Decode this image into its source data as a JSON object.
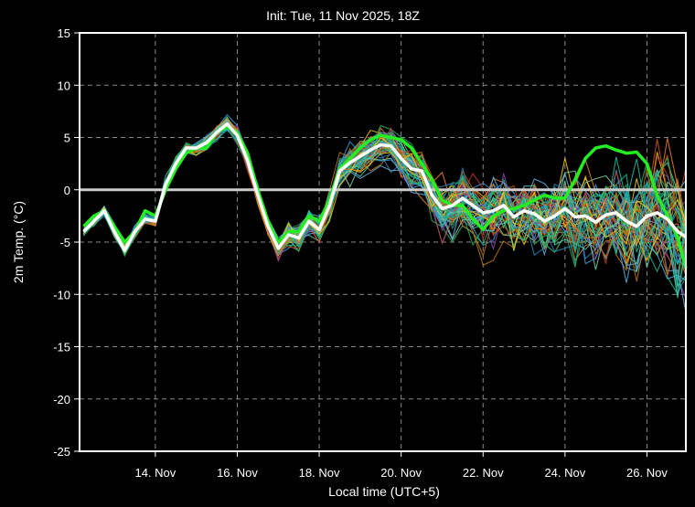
{
  "chart_data": {
    "type": "line",
    "title": "Init: Tue, 11 Nov 2025, 18Z",
    "xlabel": "Local time (UTC+5)",
    "ylabel": "2m Temp. (°C)",
    "ylim": [
      -25,
      15
    ],
    "yticks": [
      15,
      10,
      5,
      0,
      -5,
      -10,
      -15,
      -20,
      -25
    ],
    "xlim_days": [
      12.15,
      26.95
    ],
    "xticks": [
      {
        "day": 14,
        "label": "14. Nov"
      },
      {
        "day": 16,
        "label": "16. Nov"
      },
      {
        "day": 18,
        "label": "18. Nov"
      },
      {
        "day": 20,
        "label": "20. Nov"
      },
      {
        "day": 22,
        "label": "22. Nov"
      },
      {
        "day": 24,
        "label": "24. Nov"
      },
      {
        "day": 26,
        "label": "26. Nov"
      }
    ],
    "grid": true,
    "zero_line_color": "#cccccc",
    "ensemble_colors": [
      "#e67e22",
      "#3498db",
      "#27ae60",
      "#1abc9c",
      "#f1c40f",
      "#5dade2",
      "#d35400",
      "#16a085",
      "#8e44ad",
      "#2ecc71",
      "#c0392b",
      "#2980b9",
      "#7dcea0",
      "#b9770e",
      "#48c9b0"
    ],
    "ensemble_count": 50,
    "series": [
      {
        "role": "mean",
        "color": "#ffffff",
        "x": [
          12.25,
          12.5,
          12.75,
          13.0,
          13.25,
          13.5,
          13.75,
          14.0,
          14.25,
          14.5,
          14.75,
          15.0,
          15.25,
          15.5,
          15.75,
          16.0,
          16.25,
          16.5,
          16.75,
          17.0,
          17.25,
          17.5,
          17.75,
          18.0,
          18.25,
          18.5,
          18.75,
          19.0,
          19.25,
          19.5,
          19.75,
          20.0,
          20.25,
          20.5,
          20.75,
          21.0,
          21.25,
          21.5,
          21.75,
          22.0,
          22.25,
          22.5,
          22.75,
          23.0,
          23.25,
          23.5,
          23.75,
          24.0,
          24.25,
          24.5,
          24.75,
          25.0,
          25.25,
          25.5,
          25.75,
          26.0,
          26.25,
          26.5,
          26.75,
          26.95
        ],
        "values": [
          -4.0,
          -3.0,
          -2.0,
          -4.0,
          -5.8,
          -4.0,
          -2.8,
          -3.0,
          0.5,
          2.5,
          4.0,
          4.0,
          4.5,
          5.5,
          6.3,
          5.2,
          2.8,
          -0.5,
          -3.5,
          -5.6,
          -4.3,
          -4.6,
          -3.0,
          -3.8,
          -1.5,
          1.8,
          2.6,
          3.2,
          3.8,
          4.3,
          4.2,
          3.0,
          2.0,
          1.8,
          -0.5,
          -1.8,
          -1.5,
          -0.8,
          -1.5,
          -2.2,
          -2.0,
          -1.5,
          -2.6,
          -2.0,
          -2.3,
          -3.0,
          -2.5,
          -1.8,
          -2.6,
          -2.5,
          -3.1,
          -2.4,
          -2.2,
          -3.0,
          -3.5,
          -2.5,
          -2.2,
          -2.8,
          -4.0,
          -4.5
        ]
      },
      {
        "role": "control",
        "color": "#22ee22",
        "x": [
          12.25,
          12.5,
          12.75,
          13.0,
          13.25,
          13.5,
          13.75,
          14.0,
          14.25,
          14.5,
          14.75,
          15.0,
          15.25,
          15.5,
          15.75,
          16.0,
          16.25,
          16.5,
          16.75,
          17.0,
          17.25,
          17.5,
          17.75,
          18.0,
          18.25,
          18.5,
          18.75,
          19.0,
          19.25,
          19.5,
          19.75,
          20.0,
          20.25,
          20.5,
          20.75,
          21.0,
          21.25,
          21.5,
          21.75,
          22.0,
          22.25,
          22.5,
          22.75,
          23.0,
          23.25,
          23.5,
          23.75,
          24.0,
          24.25,
          24.5,
          24.75,
          25.0,
          25.25,
          25.5,
          25.75,
          26.0,
          26.25,
          26.5,
          26.75,
          26.95
        ],
        "values": [
          -3.5,
          -2.5,
          -2.0,
          -3.5,
          -5.0,
          -4.0,
          -2.0,
          -2.5,
          0.0,
          2.0,
          3.5,
          4.0,
          4.0,
          5.5,
          6.0,
          5.5,
          3.5,
          0.0,
          -3.0,
          -5.0,
          -4.0,
          -4.0,
          -2.5,
          -3.0,
          -1.0,
          2.0,
          3.0,
          4.0,
          4.8,
          5.2,
          5.0,
          4.8,
          4.0,
          2.5,
          1.0,
          -1.0,
          -1.5,
          -1.5,
          -2.8,
          -3.8,
          -2.5,
          -2.0,
          -1.8,
          -1.5,
          -1.0,
          -0.5,
          -0.8,
          -0.8,
          1.0,
          3.0,
          4.0,
          4.2,
          3.8,
          3.5,
          3.6,
          2.5,
          -0.5,
          -2.5,
          -4.5,
          -7.5
        ]
      }
    ]
  }
}
